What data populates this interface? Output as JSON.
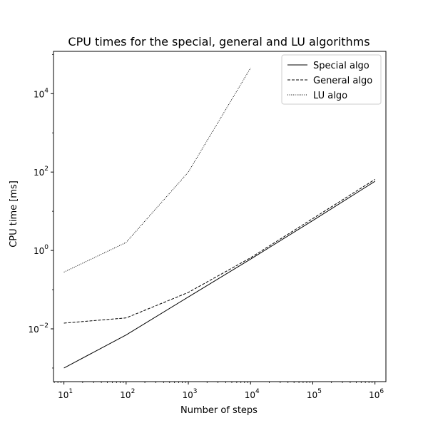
{
  "chart_data": {
    "type": "line",
    "title": "CPU times for the special, general and LU algorithms",
    "xlabel": "Number of steps",
    "ylabel": "CPU time [ms]",
    "xscale": "log",
    "yscale": "log",
    "xlim": [
      6.8,
      1500000.0
    ],
    "ylim": [
      0.00045,
      120000
    ],
    "grid": false,
    "legend_position": "top-right",
    "xticks": [
      {
        "base": "10",
        "exp": "1",
        "value": 10
      },
      {
        "base": "10",
        "exp": "2",
        "value": 100
      },
      {
        "base": "10",
        "exp": "3",
        "value": 1000
      },
      {
        "base": "10",
        "exp": "4",
        "value": 10000
      },
      {
        "base": "10",
        "exp": "5",
        "value": 100000
      },
      {
        "base": "10",
        "exp": "6",
        "value": 1000000
      }
    ],
    "yticks": [
      {
        "base": "10",
        "exp": "−2",
        "value": 0.01
      },
      {
        "base": "10",
        "exp": "0",
        "value": 1
      },
      {
        "base": "10",
        "exp": "2",
        "value": 100
      },
      {
        "base": "10",
        "exp": "4",
        "value": 10000
      }
    ],
    "series": [
      {
        "name": "Special algo",
        "style": "solid",
        "color": "#000000",
        "x": [
          10,
          100,
          1000,
          10000,
          100000,
          1000000
        ],
        "y": [
          0.001,
          0.007,
          0.065,
          0.6,
          5.8,
          58
        ]
      },
      {
        "name": "General algo",
        "style": "dashed",
        "color": "#000000",
        "x": [
          10,
          100,
          1000,
          10000,
          100000,
          1000000
        ],
        "y": [
          0.014,
          0.019,
          0.085,
          0.65,
          6.5,
          65
        ]
      },
      {
        "name": "LU algo",
        "style": "dotted",
        "color": "#000000",
        "x": [
          10,
          100,
          1000,
          10000
        ],
        "y": [
          0.28,
          1.6,
          100,
          45000
        ]
      }
    ]
  }
}
